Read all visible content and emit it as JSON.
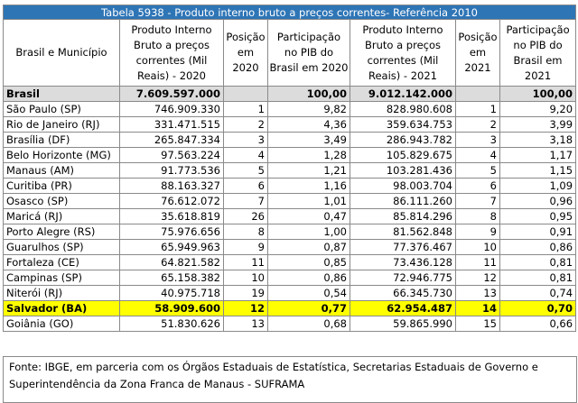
{
  "title": "Tabela 5938 - Produto interno bruto a preços correntes- Referência 2010",
  "headers": {
    "col1": "Brasil e Município",
    "col2": "Produto Interno Bruto a preços correntes (Mil Reais) - 2020",
    "col3": "Posição em 2020",
    "col4": "Participação no PIB do Brasil em 2020",
    "col5": "Produto Interno Bruto a preços correntes (Mil Reais) - 2021",
    "col6": "Posição em 2021",
    "col7": "Participação no PIB do Brasil em 2021"
  },
  "rows": [
    {
      "name": "Brasil",
      "pib2020": "7.609.597.000",
      "pos2020": "",
      "part2020": "100,00",
      "pib2021": "9.012.142.000",
      "pos2021": "",
      "part2021": "100,00"
    },
    {
      "name": "São Paulo (SP)",
      "pib2020": "746.909.330",
      "pos2020": "1",
      "part2020": "9,82",
      "pib2021": "828.980.608",
      "pos2021": "1",
      "part2021": "9,20"
    },
    {
      "name": "Rio de Janeiro (RJ)",
      "pib2020": "331.471.515",
      "pos2020": "2",
      "part2020": "4,36",
      "pib2021": "359.634.753",
      "pos2021": "2",
      "part2021": "3,99"
    },
    {
      "name": "Brasília (DF)",
      "pib2020": "265.847.334",
      "pos2020": "3",
      "part2020": "3,49",
      "pib2021": "286.943.782",
      "pos2021": "3",
      "part2021": "3,18"
    },
    {
      "name": "Belo Horizonte (MG)",
      "pib2020": "97.563.224",
      "pos2020": "4",
      "part2020": "1,28",
      "pib2021": "105.829.675",
      "pos2021": "4",
      "part2021": "1,17"
    },
    {
      "name": "Manaus (AM)",
      "pib2020": "91.773.536",
      "pos2020": "5",
      "part2020": "1,21",
      "pib2021": "103.281.436",
      "pos2021": "5",
      "part2021": "1,15"
    },
    {
      "name": "Curitiba (PR)",
      "pib2020": "88.163.327",
      "pos2020": "6",
      "part2020": "1,16",
      "pib2021": "98.003.704",
      "pos2021": "6",
      "part2021": "1,09"
    },
    {
      "name": "Osasco (SP)",
      "pib2020": "76.612.072",
      "pos2020": "7",
      "part2020": "1,01",
      "pib2021": "86.111.260",
      "pos2021": "7",
      "part2021": "0,96"
    },
    {
      "name": "Maricá (RJ)",
      "pib2020": "35.618.819",
      "pos2020": "26",
      "part2020": "0,47",
      "pib2021": "85.814.296",
      "pos2021": "8",
      "part2021": "0,95"
    },
    {
      "name": "Porto Alegre (RS)",
      "pib2020": "75.976.656",
      "pos2020": "8",
      "part2020": "1,00",
      "pib2021": "81.562.848",
      "pos2021": "9",
      "part2021": "0,91"
    },
    {
      "name": "Guarulhos (SP)",
      "pib2020": "65.949.963",
      "pos2020": "9",
      "part2020": "0,87",
      "pib2021": "77.376.467",
      "pos2021": "10",
      "part2021": "0,86"
    },
    {
      "name": "Fortaleza (CE)",
      "pib2020": "64.821.582",
      "pos2020": "11",
      "part2020": "0,85",
      "pib2021": "73.436.128",
      "pos2021": "11",
      "part2021": "0,81"
    },
    {
      "name": "Campinas (SP)",
      "pib2020": "65.158.382",
      "pos2020": "10",
      "part2020": "0,86",
      "pib2021": "72.946.775",
      "pos2021": "12",
      "part2021": "0,81"
    },
    {
      "name": "Niterói (RJ)",
      "pib2020": "40.975.718",
      "pos2020": "19",
      "part2020": "0,54",
      "pib2021": "66.345.730",
      "pos2021": "13",
      "part2021": "0,74"
    },
    {
      "name": "Salvador (BA)",
      "pib2020": "58.909.600",
      "pos2020": "12",
      "part2020": "0,77",
      "pib2021": "62.954.487",
      "pos2021": "14",
      "part2021": "0,70"
    },
    {
      "name": "Goiânia (GO)",
      "pib2020": "51.830.626",
      "pos2020": "13",
      "part2020": "0,68",
      "pib2021": "59.865.990",
      "pos2021": "15",
      "part2021": "0,66"
    }
  ],
  "source": "Fonte: IBGE, em parceria com os Órgãos Estaduais de Estatística, Secretarias Estaduais de Governo e Superintendência da Zona Franca de Manaus - SUFRAMA",
  "colors": {
    "title_bg": "#2e75b6",
    "brasil_row_bg": "#dcdcdc",
    "highlight_bg": "#ffff00"
  }
}
